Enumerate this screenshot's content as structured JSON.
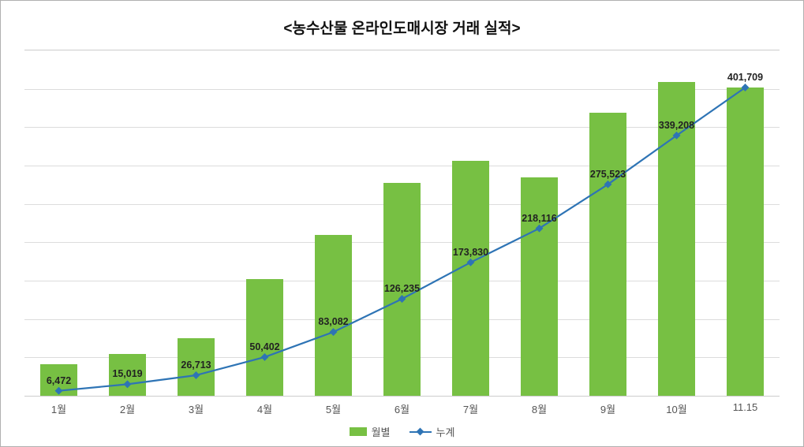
{
  "chart": {
    "type": "bar+line",
    "title": "<농수산물 온라인도매시장 거래 실적>",
    "title_fontsize": 19,
    "title_weight": "bold",
    "background_color": "#ffffff",
    "border_color": "#b0b0b0",
    "grid_color": "#dcdcdc",
    "categories": [
      "1월",
      "2월",
      "3월",
      "4월",
      "5월",
      "6월",
      "7월",
      "8월",
      "9월",
      "10월",
      "11.15"
    ],
    "x_tick_fontsize": 13,
    "x_tick_color": "#555555",
    "bar": {
      "series_name": "월별",
      "color": "#77c043",
      "width_ratio": 0.55,
      "values": [
        6472,
        8547,
        11694,
        23689,
        32680,
        43153,
        47595,
        44286,
        57407,
        63685,
        62501
      ],
      "y_max": 70000,
      "y_min": 0
    },
    "line": {
      "series_name": "누계",
      "color": "#2e74b5",
      "line_width": 2.2,
      "marker": "diamond",
      "marker_size": 7,
      "values": [
        6472,
        15019,
        26713,
        50402,
        83082,
        126235,
        173830,
        218116,
        275523,
        339208,
        401709
      ],
      "labels": [
        "6,472",
        "15,019",
        "26,713",
        "50,402",
        "83,082",
        "126,235",
        "173,830",
        "218,116",
        "275,523",
        "339,208",
        "401,709"
      ],
      "label_fontsize": 12.5,
      "label_color": "#222222",
      "y_max": 450000,
      "y_min": 0
    },
    "gridline_count": 9,
    "legend": {
      "items": [
        {
          "key": "bar",
          "label": "월별"
        },
        {
          "key": "line",
          "label": "누계"
        }
      ],
      "fontsize": 13,
      "position": "bottom-center"
    }
  }
}
